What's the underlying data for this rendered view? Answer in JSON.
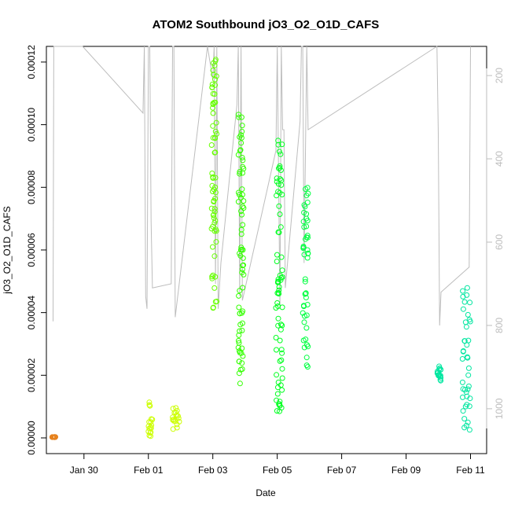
{
  "chart_data": {
    "type": "scatter",
    "title": "ATOM2 Southbound jO3_O2_O1D_CAFS",
    "xlabel": "Date",
    "ylabel": "jO3_O2_O1D_CAFS",
    "x_ticks": [
      "Jan 30",
      "Feb 01",
      "Feb 03",
      "Feb 05",
      "Feb 07",
      "Feb 09",
      "Feb 11"
    ],
    "y_ticks": [
      "0.00000",
      "0.00002",
      "0.00004",
      "0.00006",
      "0.00008",
      "0.00010",
      "0.00012"
    ],
    "y_right_ticks": [
      "200",
      "400",
      "600",
      "800",
      "1000"
    ],
    "xlim": [
      "2017-01-28T20:00",
      "2017-02-11T12:00"
    ],
    "ylim": [
      0,
      0.000125
    ],
    "y_right_lim": [
      130,
      1070
    ],
    "y_right_inverted": true,
    "grid": false,
    "point_style": "open-circle",
    "color_scale": [
      "#e6821e",
      "#ccff00",
      "#00ff00",
      "#00e6a0"
    ],
    "clusters": [
      {
        "x_start": "2017-01-29T00:00",
        "x_end": "2017-01-29T03:00",
        "y_min": 2e-07,
        "y_max": 3e-07,
        "color": "#e6821e"
      },
      {
        "x_start": "2017-01-31T23:00",
        "x_end": "2017-02-01T03:00",
        "y_min": 5e-07,
        "y_max": 1.2e-05,
        "color": "#ccff00"
      },
      {
        "x_start": "2017-02-01T18:00",
        "x_end": "2017-02-01T23:00",
        "y_min": 5e-07,
        "y_max": 1e-05,
        "color": "#ccff00"
      },
      {
        "x_start": "2017-02-02T23:00",
        "x_end": "2017-02-03T03:00",
        "y_min": 4.1e-05,
        "y_max": 0.000121,
        "color": "#66ff00"
      },
      {
        "x_start": "2017-02-03T19:00",
        "x_end": "2017-02-03T23:00",
        "y_min": 1.7e-05,
        "y_max": 0.000104,
        "color": "#33ff00"
      },
      {
        "x_start": "2017-02-04T23:00",
        "x_end": "2017-02-05T04:00",
        "y_min": 8e-06,
        "y_max": 9.7e-05,
        "color": "#00ff20"
      },
      {
        "x_start": "2017-02-05T19:00",
        "x_end": "2017-02-05T23:00",
        "y_min": 2.2e-05,
        "y_max": 8e-05,
        "color": "#00ff40"
      },
      {
        "x_start": "2017-02-09T23:00",
        "x_end": "2017-02-10T02:00",
        "y_min": 1.8e-05,
        "y_max": 2.3e-05,
        "color": "#00e6a0"
      },
      {
        "x_start": "2017-02-10T18:00",
        "x_end": "2017-02-11T00:00",
        "y_min": 2e-06,
        "y_max": 5.1e-05,
        "color": "#00e6a0"
      }
    ],
    "altitude_series": {
      "name": "",
      "color": "#bdbdbd",
      "scale": "right",
      "points": [
        [
          "2017-01-29T01:00",
          790
        ],
        [
          "2017-01-29T01:30",
          130
        ],
        [
          "2017-01-29T03:00",
          130
        ],
        [
          "2017-01-29T23:00",
          130
        ],
        [
          "2017-01-31T20:00",
          290
        ],
        [
          "2017-01-31T21:00",
          130
        ],
        [
          "2017-01-31T22:00",
          730
        ],
        [
          "2017-01-31T23:00",
          760
        ],
        [
          "2017-02-01T00:00",
          130
        ],
        [
          "2017-02-01T01:00",
          130
        ],
        [
          "2017-02-01T02:00",
          550
        ],
        [
          "2017-02-01T03:00",
          710
        ],
        [
          "2017-02-01T17:00",
          700
        ],
        [
          "2017-02-01T18:00",
          130
        ],
        [
          "2017-02-01T19:00",
          130
        ],
        [
          "2017-02-01T20:00",
          780
        ],
        [
          "2017-02-02T20:00",
          130
        ],
        [
          "2017-02-03T00:00",
          210
        ],
        [
          "2017-02-03T01:00",
          130
        ],
        [
          "2017-02-03T02:00",
          700
        ],
        [
          "2017-02-03T03:00",
          130
        ],
        [
          "2017-02-03T04:00",
          760
        ],
        [
          "2017-02-03T06:00",
          650
        ],
        [
          "2017-02-03T18:00",
          270
        ],
        [
          "2017-02-03T19:00",
          130
        ],
        [
          "2017-02-03T20:00",
          730
        ],
        [
          "2017-02-03T21:00",
          130
        ],
        [
          "2017-02-03T22:00",
          740
        ],
        [
          "2017-02-04T23:00",
          380
        ],
        [
          "2017-02-05T00:00",
          130
        ],
        [
          "2017-02-05T02:00",
          760
        ],
        [
          "2017-02-05T03:00",
          130
        ],
        [
          "2017-02-05T04:00",
          330
        ],
        [
          "2017-02-05T05:00",
          330
        ],
        [
          "2017-02-05T06:00",
          710
        ],
        [
          "2017-02-05T17:00",
          310
        ],
        [
          "2017-02-05T18:00",
          130
        ],
        [
          "2017-02-05T19:00",
          130
        ],
        [
          "2017-02-05T20:00",
          650
        ],
        [
          "2017-02-05T22:00",
          130
        ],
        [
          "2017-02-05T23:00",
          330
        ],
        [
          "2017-02-09T23:00",
          130
        ],
        [
          "2017-02-10T00:00",
          340
        ],
        [
          "2017-02-10T01:00",
          800
        ],
        [
          "2017-02-10T02:00",
          720
        ],
        [
          "2017-02-10T23:00",
          660
        ],
        [
          "2017-02-11T00:00",
          130
        ]
      ]
    }
  }
}
